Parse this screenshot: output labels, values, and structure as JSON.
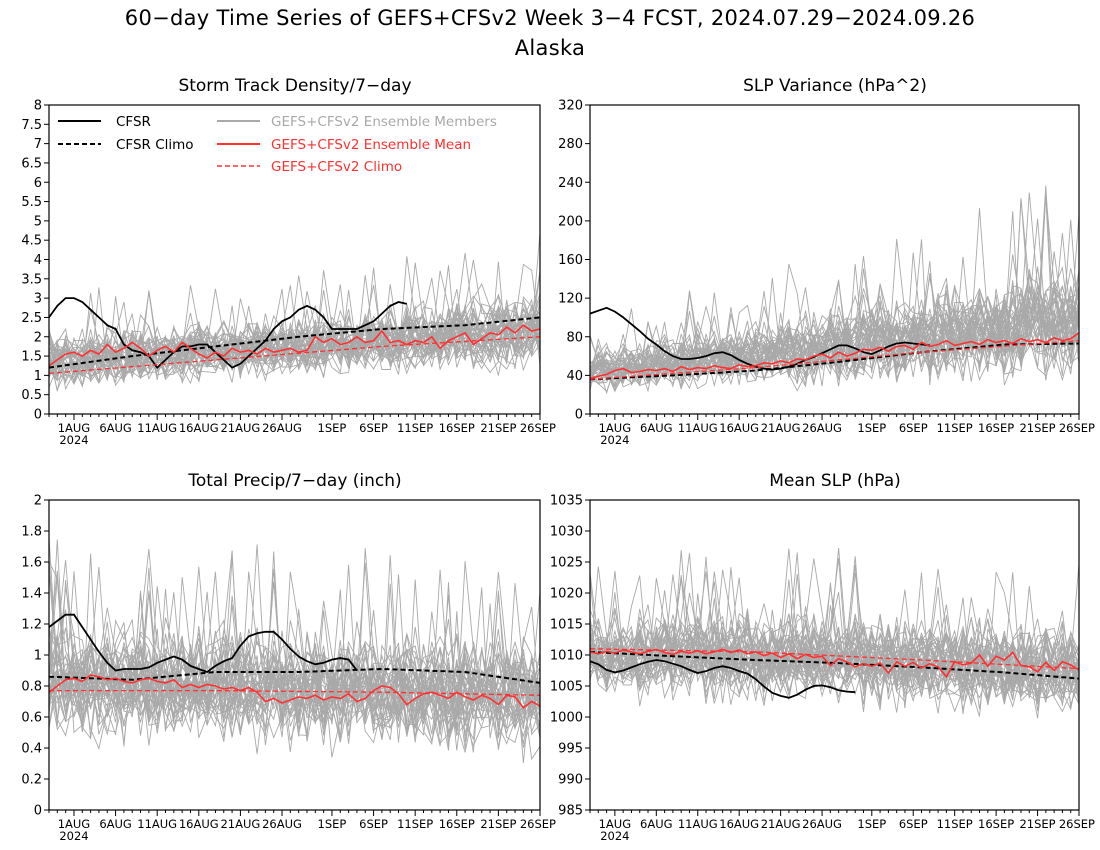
{
  "header": {
    "title": "60−day Time Series of GEFS+CFSv2 Week 3−4 FCST, 2024.07.29−2024.09.26",
    "subtitle": "Alaska"
  },
  "legend": {
    "cfsr": "CFSR",
    "cfsr_climo": "CFSR Climo",
    "members": "GEFS+CFSv2 Ensemble Members",
    "ens_mean": "GEFS+CFSv2 Ensemble Mean",
    "gefs_climo": "GEFS+CFSv2 Climo"
  },
  "colors": {
    "cfsr": "#000000",
    "members": "#a9a9a9",
    "ens_mean": "#ff3030"
  },
  "x_axis": {
    "tick_labels": [
      "1AUG",
      "6AUG",
      "11AUG",
      "16AUG",
      "21AUG",
      "26AUG",
      "1SEP",
      "6SEP",
      "11SEP",
      "16SEP",
      "21SEP",
      "26SEP"
    ],
    "year_label": "2024"
  },
  "chart_data": [
    {
      "type": "line",
      "title": "Storm Track Density/7−day",
      "ylim": [
        0,
        8
      ],
      "yticks": [
        "0",
        "0.5",
        "1",
        "1.5",
        "2",
        "2.5",
        "3",
        "3.5",
        "4",
        "4.5",
        "5",
        "5.5",
        "6",
        "6.5",
        "7",
        "7.5",
        "8"
      ],
      "legend_shown": true,
      "series": [
        {
          "name": "CFSR",
          "values": [
            2.5,
            2.8,
            3.0,
            3.0,
            2.9,
            2.7,
            2.5,
            2.3,
            2.2,
            1.8,
            1.65,
            1.6,
            1.5,
            1.2,
            1.4,
            1.6,
            1.75,
            1.75,
            1.8,
            1.8,
            1.6,
            1.4,
            1.2,
            1.3,
            1.5,
            1.7,
            1.9,
            2.2,
            2.4,
            2.5,
            2.7,
            2.8,
            2.7,
            2.5,
            2.2,
            2.2,
            2.2,
            2.2,
            2.3,
            2.4,
            2.6,
            2.8,
            2.9,
            2.85
          ]
        },
        {
          "name": "CFSR Climo",
          "x": [
            0,
            10,
            20,
            30,
            40,
            50,
            59
          ],
          "values": [
            1.2,
            1.5,
            1.75,
            2.0,
            2.2,
            2.3,
            2.5
          ]
        },
        {
          "name": "GEFS+CFSv2 Ensemble Mean",
          "values": [
            1.25,
            1.4,
            1.55,
            1.6,
            1.5,
            1.65,
            1.55,
            1.8,
            1.6,
            1.7,
            1.85,
            1.7,
            1.5,
            1.65,
            1.75,
            1.6,
            1.85,
            1.7,
            1.55,
            1.45,
            1.6,
            1.5,
            1.7,
            1.6,
            1.65,
            1.55,
            1.7,
            1.6,
            1.65,
            1.7,
            1.6,
            1.65,
            2.0,
            1.85,
            1.95,
            1.8,
            1.85,
            2.0,
            1.85,
            1.9,
            2.15,
            1.85,
            1.9,
            1.8,
            1.9,
            1.85,
            2.0,
            1.7,
            1.9,
            2.0,
            2.1,
            1.8,
            1.95,
            2.1,
            2.05,
            2.25,
            2.1,
            2.3,
            2.15,
            2.2
          ]
        },
        {
          "name": "GEFS+CFSv2 Climo",
          "x": [
            0,
            20,
            40,
            59
          ],
          "values": [
            1.05,
            1.4,
            1.75,
            2.0
          ]
        }
      ],
      "members_envelope": {
        "x": [
          0,
          30,
          59
        ],
        "low": [
          0.8,
          1.2,
          1.4
        ],
        "high": [
          1.9,
          2.3,
          2.9
        ]
      }
    },
    {
      "type": "line",
      "title": "SLP Variance (hPa^2)",
      "ylim": [
        0,
        320
      ],
      "yticks": [
        "0",
        "40",
        "80",
        "120",
        "160",
        "200",
        "240",
        "280",
        "320"
      ],
      "legend_shown": false,
      "series": [
        {
          "name": "CFSR",
          "values": [
            104,
            107,
            110,
            106,
            100,
            93,
            86,
            78,
            72,
            65,
            60,
            57,
            57,
            58,
            60,
            63,
            64,
            61,
            56,
            52,
            49,
            47,
            46,
            47,
            49,
            52,
            56,
            59,
            63,
            67,
            71,
            71,
            68,
            64,
            62,
            66,
            70,
            73,
            74,
            73,
            72,
            71
          ]
        },
        {
          "name": "CFSR Climo",
          "x": [
            0,
            10,
            20,
            30,
            40,
            50,
            59
          ],
          "values": [
            36,
            40,
            45,
            54,
            64,
            72,
            73
          ]
        },
        {
          "name": "GEFS+CFSv2 Ensemble Mean",
          "values": [
            37,
            39,
            41,
            45,
            47,
            43,
            44,
            46,
            45,
            47,
            44,
            49,
            46,
            48,
            47,
            50,
            48,
            47,
            51,
            49,
            50,
            53,
            52,
            55,
            53,
            57,
            56,
            60,
            62,
            58,
            64,
            60,
            63,
            67,
            66,
            69,
            65,
            70,
            71,
            67,
            74,
            70,
            72,
            76,
            71,
            73,
            75,
            72,
            77,
            74,
            76,
            73,
            78,
            75,
            77,
            74,
            79,
            76,
            78,
            84
          ]
        },
        {
          "name": "GEFS+CFSv2 Climo",
          "x": [
            0,
            20,
            40,
            59
          ],
          "values": [
            36,
            48,
            64,
            76
          ]
        }
      ],
      "members_envelope": {
        "x": [
          0,
          30,
          59
        ],
        "low": [
          28,
          40,
          50
        ],
        "high": [
          60,
          100,
          140
        ]
      }
    },
    {
      "type": "line",
      "title": "Total Precip/7−day (inch)",
      "ylim": [
        0,
        2
      ],
      "yticks": [
        "0",
        "0.2",
        "0.4",
        "0.6",
        "0.8",
        "1",
        "1.2",
        "1.4",
        "1.6",
        "1.8",
        "2"
      ],
      "legend_shown": false,
      "series": [
        {
          "name": "CFSR",
          "values": [
            1.18,
            1.22,
            1.26,
            1.26,
            1.18,
            1.1,
            1.02,
            0.95,
            0.9,
            0.91,
            0.91,
            0.91,
            0.92,
            0.95,
            0.97,
            0.99,
            0.97,
            0.93,
            0.91,
            0.89,
            0.93,
            0.96,
            0.98,
            1.06,
            1.12,
            1.14,
            1.15,
            1.15,
            1.1,
            1.04,
            0.99,
            0.96,
            0.94,
            0.95,
            0.97,
            0.98,
            0.97,
            0.9
          ]
        },
        {
          "name": "CFSR Climo",
          "x": [
            0,
            10,
            20,
            30,
            40,
            50,
            59
          ],
          "values": [
            0.86,
            0.84,
            0.89,
            0.89,
            0.91,
            0.89,
            0.82
          ]
        },
        {
          "name": "GEFS+CFSv2 Ensemble Mean",
          "values": [
            0.76,
            0.8,
            0.84,
            0.85,
            0.83,
            0.87,
            0.86,
            0.84,
            0.85,
            0.83,
            0.82,
            0.84,
            0.85,
            0.83,
            0.82,
            0.84,
            0.79,
            0.81,
            0.79,
            0.81,
            0.8,
            0.78,
            0.79,
            0.77,
            0.79,
            0.76,
            0.7,
            0.72,
            0.69,
            0.71,
            0.73,
            0.72,
            0.74,
            0.71,
            0.73,
            0.72,
            0.75,
            0.7,
            0.72,
            0.77,
            0.8,
            0.79,
            0.75,
            0.68,
            0.72,
            0.75,
            0.76,
            0.74,
            0.72,
            0.76,
            0.73,
            0.71,
            0.74,
            0.72,
            0.68,
            0.74,
            0.73,
            0.66,
            0.7,
            0.67
          ]
        },
        {
          "name": "GEFS+CFSv2 Climo",
          "x": [
            0,
            20,
            40,
            59
          ],
          "values": [
            0.77,
            0.77,
            0.76,
            0.74
          ]
        }
      ],
      "members_envelope": {
        "x": [
          0,
          30,
          59
        ],
        "low": [
          0.55,
          0.5,
          0.45
        ],
        "high": [
          1.1,
          1.05,
          1.0
        ]
      }
    },
    {
      "type": "line",
      "title": "Mean SLP (hPa)",
      "ylim": [
        985,
        1035
      ],
      "yticks": [
        "985",
        "990",
        "995",
        "1000",
        "1005",
        "1010",
        "1015",
        "1020",
        "1025",
        "1030",
        "1035"
      ],
      "legend_shown": false,
      "series": [
        {
          "name": "CFSR",
          "values": [
            1009,
            1008.5,
            1007.6,
            1007.2,
            1007.5,
            1008,
            1008.5,
            1008.9,
            1009.2,
            1009,
            1008.6,
            1008.2,
            1007.6,
            1007.1,
            1007.4,
            1007.9,
            1008.2,
            1007.9,
            1007.4,
            1007,
            1006.1,
            1004.9,
            1003.9,
            1003.4,
            1003.1,
            1003.6,
            1004.4,
            1005,
            1005.1,
            1004.8,
            1004.3,
            1004.1,
            1004
          ]
        },
        {
          "name": "CFSR Climo",
          "x": [
            0,
            10,
            20,
            30,
            40,
            50,
            59
          ],
          "values": [
            1010.5,
            1009.8,
            1009.2,
            1008.7,
            1008,
            1007.2,
            1006.2
          ]
        },
        {
          "name": "GEFS+CFSv2 Ensemble Mean",
          "values": [
            1010.5,
            1010.2,
            1010.6,
            1010.3,
            1010.8,
            1010.5,
            1010.2,
            1010.6,
            1010.9,
            1010.4,
            1010.1,
            1010.6,
            1010.3,
            1010.7,
            1010.2,
            1010.5,
            1010.9,
            1010.4,
            1010.8,
            1010.2,
            1010.5,
            1009.9,
            1010.3,
            1009.6,
            1010.2,
            1009.4,
            1010.1,
            1009.6,
            1009.8,
            1008.3,
            1009.4,
            1008.9,
            1008.1,
            1008.6,
            1008.2,
            1008.7,
            1007.1,
            1008.9,
            1008.2,
            1008.8,
            1007.9,
            1008.6,
            1008.1,
            1006.5,
            1008.9,
            1008.4,
            1008.7,
            1010,
            1008.2,
            1009.8,
            1009.2,
            1010.4,
            1008.3,
            1008.1,
            1007.3,
            1008.8,
            1007.5,
            1008.9,
            1008.4,
            1007.6
          ]
        },
        {
          "name": "GEFS+CFSv2 Climo",
          "x": [
            0,
            20,
            40,
            59
          ],
          "values": [
            1011,
            1010.5,
            1009.2,
            1007.8
          ]
        }
      ],
      "members_envelope": {
        "x": [
          0,
          30,
          59
        ],
        "low": [
          1005,
          1004,
          1002
        ],
        "high": [
          1015,
          1015,
          1013
        ]
      }
    }
  ]
}
